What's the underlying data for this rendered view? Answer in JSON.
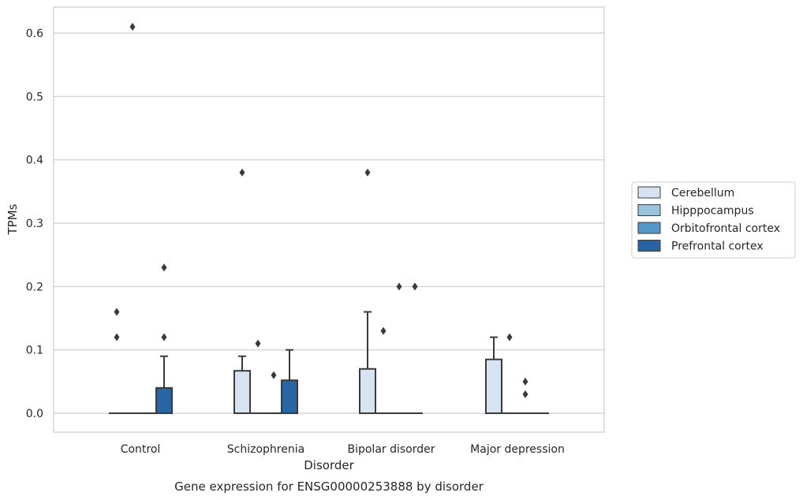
{
  "chart_data": {
    "type": "box",
    "caption": "Gene expression for ENSG00000253888 by disorder",
    "xlabel": "Disorder",
    "ylabel": "TPMs",
    "ylim": [
      -0.03,
      0.64
    ],
    "yticks": [
      0.0,
      0.1,
      0.2,
      0.3,
      0.4,
      0.5,
      0.6
    ],
    "ytick_labels": [
      "0.0",
      "0.1",
      "0.2",
      "0.3",
      "0.4",
      "0.5",
      "0.6"
    ],
    "grid": true,
    "legend_position": "right",
    "categories": [
      "Control",
      "Schizophrenia",
      "Bipolar disorder",
      "Major depression"
    ],
    "series": [
      {
        "name": "Cerebellum",
        "color": "#d6e4f2",
        "boxes": [
          {
            "q1": 0,
            "median": 0,
            "q3": 0,
            "whisker_low": 0,
            "whisker_high": 0,
            "outliers": [
              0.16,
              0.12
            ]
          },
          {
            "q1": 0,
            "median": 0,
            "q3": 0.067,
            "whisker_low": 0,
            "whisker_high": 0.09,
            "outliers": [
              0.38
            ]
          },
          {
            "q1": 0,
            "median": 0,
            "q3": 0.07,
            "whisker_low": 0,
            "whisker_high": 0.16,
            "outliers": [
              0.38
            ]
          },
          {
            "q1": 0,
            "median": 0,
            "q3": 0.085,
            "whisker_low": 0,
            "whisker_high": 0.12,
            "outliers": []
          }
        ]
      },
      {
        "name": "Hipppocampus",
        "color": "#9ac3de",
        "boxes": [
          {
            "q1": 0,
            "median": 0,
            "q3": 0,
            "whisker_low": 0,
            "whisker_high": 0,
            "outliers": [
              0.61
            ]
          },
          {
            "q1": 0,
            "median": 0,
            "q3": 0,
            "whisker_low": 0,
            "whisker_high": 0,
            "outliers": [
              0.11
            ]
          },
          {
            "q1": 0,
            "median": 0,
            "q3": 0,
            "whisker_low": 0,
            "whisker_high": 0,
            "outliers": [
              0.13
            ]
          },
          {
            "q1": 0,
            "median": 0,
            "q3": 0,
            "whisker_low": 0,
            "whisker_high": 0,
            "outliers": [
              0.12
            ]
          }
        ]
      },
      {
        "name": "Orbitofrontal cortex",
        "color": "#5596c7",
        "boxes": [
          {
            "q1": 0,
            "median": 0,
            "q3": 0,
            "whisker_low": 0,
            "whisker_high": 0,
            "outliers": []
          },
          {
            "q1": 0,
            "median": 0,
            "q3": 0,
            "whisker_low": 0,
            "whisker_high": 0,
            "outliers": [
              0.06
            ]
          },
          {
            "q1": 0,
            "median": 0,
            "q3": 0,
            "whisker_low": 0,
            "whisker_high": 0,
            "outliers": [
              0.2
            ]
          },
          {
            "q1": 0,
            "median": 0,
            "q3": 0,
            "whisker_low": 0,
            "whisker_high": 0,
            "outliers": [
              0.05,
              0.03
            ]
          }
        ]
      },
      {
        "name": "Prefrontal cortex",
        "color": "#2865a4",
        "boxes": [
          {
            "q1": 0,
            "median": 0,
            "q3": 0.04,
            "whisker_low": 0,
            "whisker_high": 0.09,
            "outliers": [
              0.23,
              0.12
            ]
          },
          {
            "q1": 0,
            "median": 0,
            "q3": 0.052,
            "whisker_low": 0,
            "whisker_high": 0.1,
            "outliers": []
          },
          {
            "q1": 0,
            "median": 0,
            "q3": 0,
            "whisker_low": 0,
            "whisker_high": 0,
            "outliers": [
              0.2
            ]
          },
          {
            "q1": 0,
            "median": 0,
            "q3": 0,
            "whisker_low": 0,
            "whisker_high": 0,
            "outliers": []
          }
        ]
      }
    ]
  }
}
